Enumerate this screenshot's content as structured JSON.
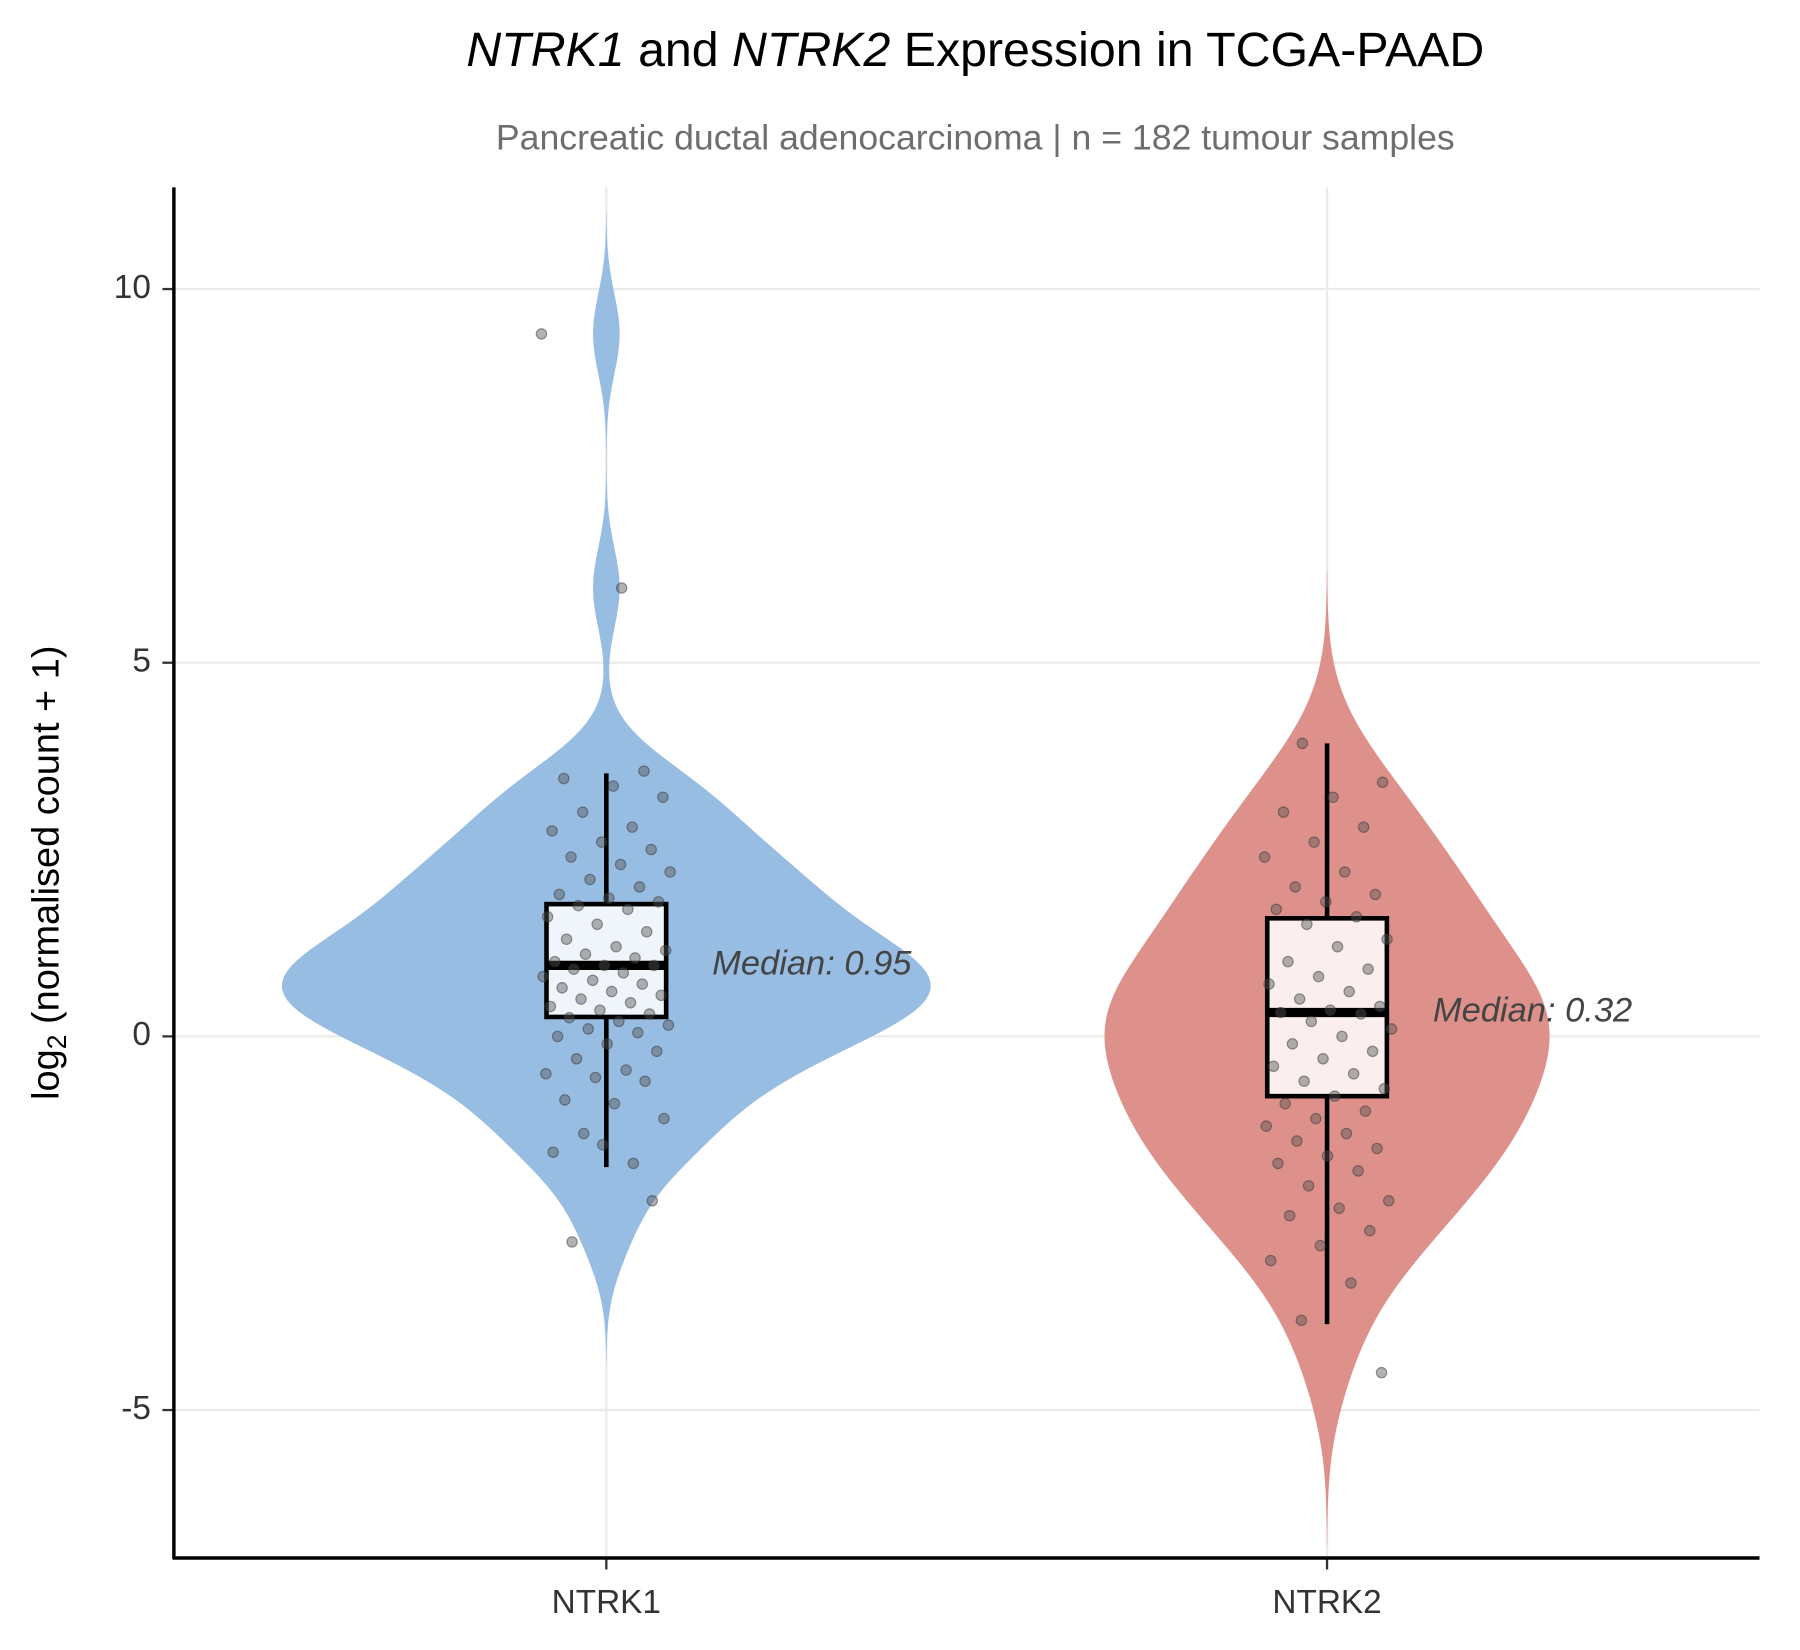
{
  "chart_data": {
    "type": "violin",
    "title": [
      {
        "text": "NTRK1",
        "italic": true
      },
      {
        "text": " and "
      },
      {
        "text": "NTRK2",
        "italic": true
      },
      {
        "text": " Expression in TCGA-PAAD"
      }
    ],
    "subtitle": "Pancreatic ductal adenocarcinoma  |  n = 182 tumour samples",
    "ylabel": {
      "base": "log",
      "sub": "2",
      "rest": " (normalised count + 1)"
    },
    "ylim": [
      -6.98,
      11.36
    ],
    "yticks": [
      -5,
      0,
      5,
      10
    ],
    "grid": true,
    "categories": [
      "NTRK1",
      "NTRK2"
    ],
    "series": [
      {
        "name": "NTRK1",
        "color": "#92b9e0",
        "box": {
          "whisker_low": -1.75,
          "q1": 0.26,
          "median": 0.95,
          "q3": 1.77,
          "whisker_high": 3.52
        },
        "annotation": "Median: 0.95",
        "points": [
          9.4,
          6.0,
          -2.75,
          -2.2,
          -1.45,
          -1.55,
          -1.7,
          -1.3,
          -1.1,
          -0.9,
          -0.85,
          -0.6,
          -0.55,
          -0.5,
          -0.45,
          -0.3,
          -0.2,
          -0.1,
          0.0,
          0.05,
          0.1,
          0.15,
          0.2,
          0.25,
          0.3,
          0.35,
          0.4,
          0.45,
          0.5,
          0.55,
          0.6,
          0.65,
          0.7,
          0.75,
          0.8,
          0.85,
          0.9,
          0.95,
          0.95,
          1.0,
          1.05,
          1.1,
          1.15,
          1.2,
          1.3,
          1.4,
          1.5,
          1.6,
          1.7,
          1.75,
          1.8,
          1.85,
          1.9,
          2.0,
          2.1,
          2.2,
          2.3,
          2.4,
          2.5,
          2.6,
          2.75,
          2.8,
          3.0,
          3.2,
          3.35,
          3.45,
          3.55
        ]
      },
      {
        "name": "NTRK2",
        "color": "#dc8b85",
        "box": {
          "whisker_low": -3.85,
          "q1": -0.8,
          "median": 0.32,
          "q3": 1.58,
          "whisker_high": 3.92
        },
        "annotation": "Median: 0.32",
        "points": [
          3.92,
          3.4,
          3.2,
          3.0,
          2.8,
          2.6,
          2.4,
          2.2,
          2.0,
          1.9,
          1.8,
          1.7,
          1.6,
          1.5,
          1.3,
          1.2,
          1.0,
          0.9,
          0.8,
          0.7,
          0.6,
          0.5,
          0.4,
          0.35,
          0.32,
          0.3,
          0.2,
          0.1,
          0.0,
          -0.1,
          -0.2,
          -0.3,
          -0.4,
          -0.5,
          -0.6,
          -0.7,
          -0.8,
          -0.9,
          -1.0,
          -1.1,
          -1.2,
          -1.3,
          -1.4,
          -1.5,
          -1.6,
          -1.7,
          -1.8,
          -2.0,
          -2.2,
          -2.3,
          -2.4,
          -2.6,
          -2.8,
          -3.0,
          -3.3,
          -3.8,
          -4.5
        ]
      }
    ]
  }
}
